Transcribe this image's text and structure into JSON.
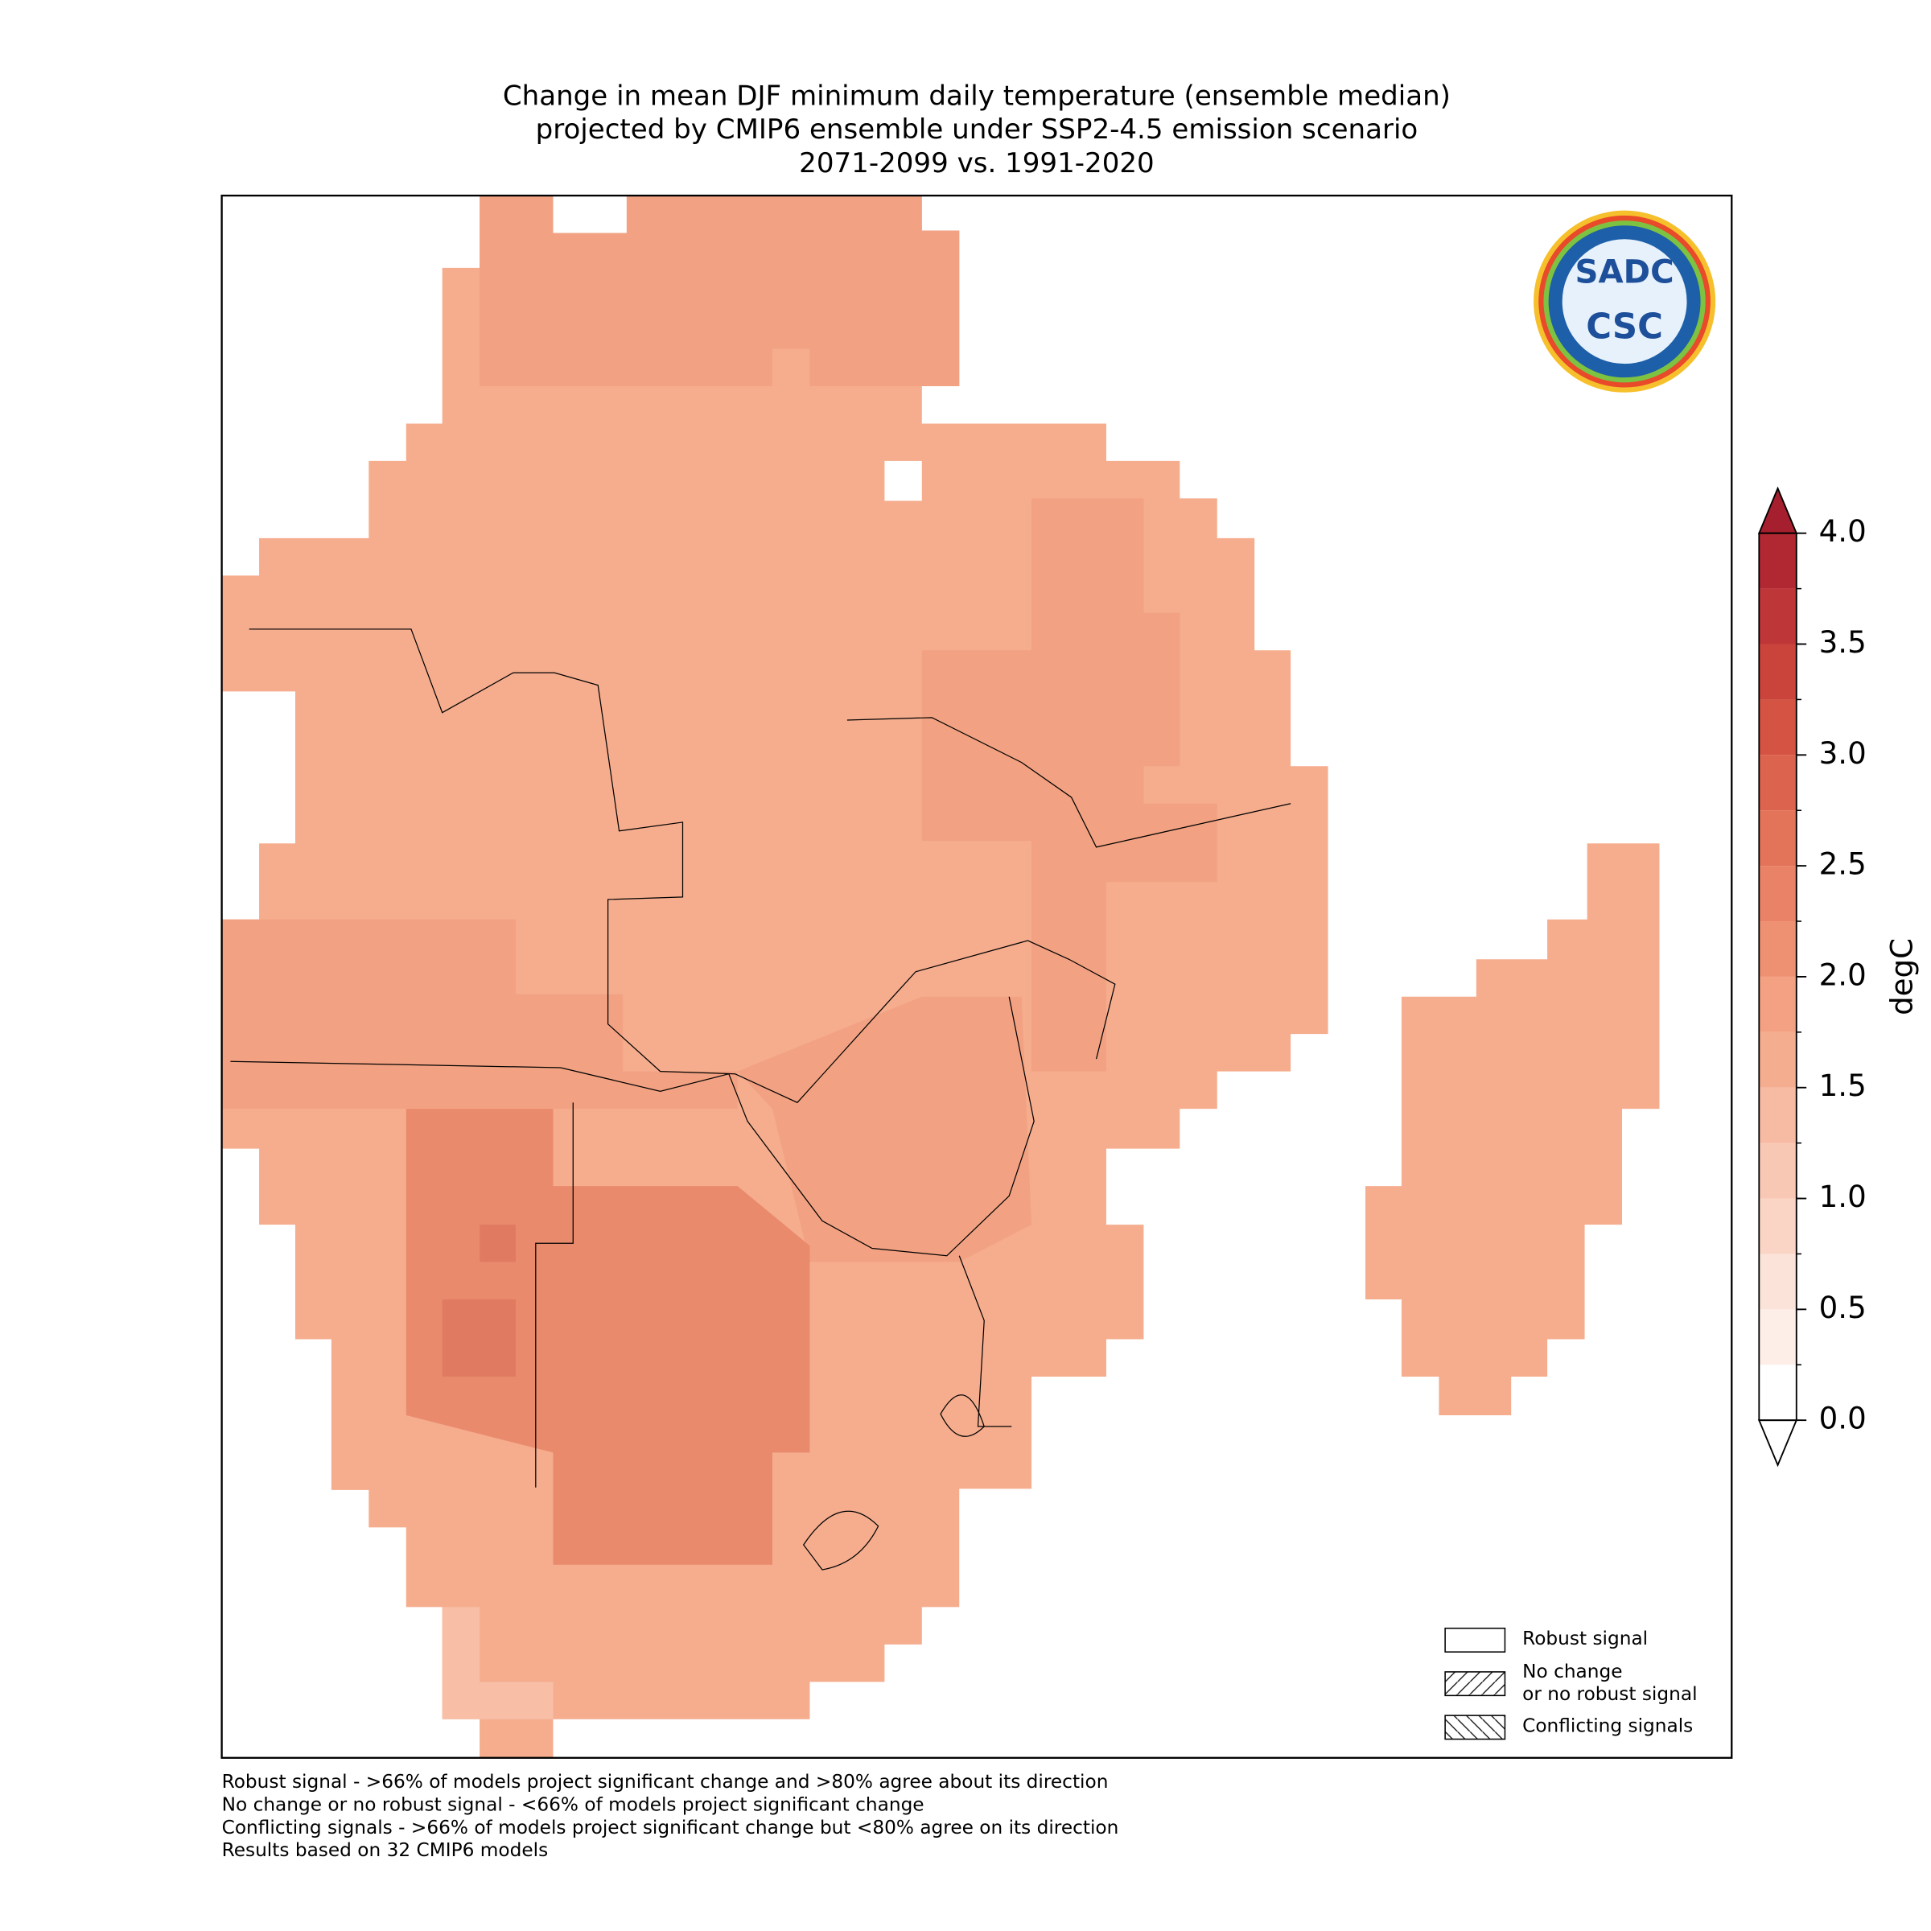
{
  "title": [
    "Change in mean DJF minimum daily temperature (ensemble median)",
    "projected by CMIP6 ensemble under SSP2-4.5 emission scenario",
    "2071-2099 vs. 1991-2020"
  ],
  "logo": {
    "top": "SADC",
    "bottom": "CSC"
  },
  "colorbar": {
    "label": "degC",
    "extend": "both",
    "levels": [
      0,
      0.25,
      0.5,
      0.75,
      1,
      1.25,
      1.5,
      1.75,
      2,
      2.25,
      2.5,
      2.75,
      3,
      3.25,
      3.5,
      3.75,
      4
    ],
    "colors": [
      "#ffffff",
      "#fdeee8",
      "#fbe3d9",
      "#fad5c6",
      "#f9c8b4",
      "#f7baa2",
      "#f5ad90",
      "#f3a182",
      "#ee9173",
      "#e98266",
      "#e37359",
      "#dc634d",
      "#d45343",
      "#ca443c",
      "#be3637",
      "#b22832"
    ],
    "under_color": "#ffffff",
    "over_color": "#a51f2e",
    "ticks": [
      {
        "value": 0,
        "label": "0.0"
      },
      {
        "value": 0.5,
        "label": "0.5"
      },
      {
        "value": 1,
        "label": "1.0"
      },
      {
        "value": 1.5,
        "label": "1.5"
      },
      {
        "value": 2,
        "label": "2.0"
      },
      {
        "value": 2.5,
        "label": "2.5"
      },
      {
        "value": 3,
        "label": "3.0"
      },
      {
        "value": 3.5,
        "label": "3.5"
      },
      {
        "value": 4,
        "label": "4.0"
      }
    ]
  },
  "legend": [
    {
      "label": "Robust signal",
      "hatch": "none"
    },
    {
      "label": "No change\nor no robust signal",
      "hatch": "forward"
    },
    {
      "label": "Conflicting signals",
      "hatch": "back"
    }
  ],
  "footnotes": [
    "Robust signal - >66% of models project significant change and >80% agree about its direction",
    "No change or no robust signal - <66% of models project significant change",
    "Conflicting signals - >66% of models project significant change but <80% agree on its direction",
    "Results based on 32 CMIP6 models"
  ]
}
